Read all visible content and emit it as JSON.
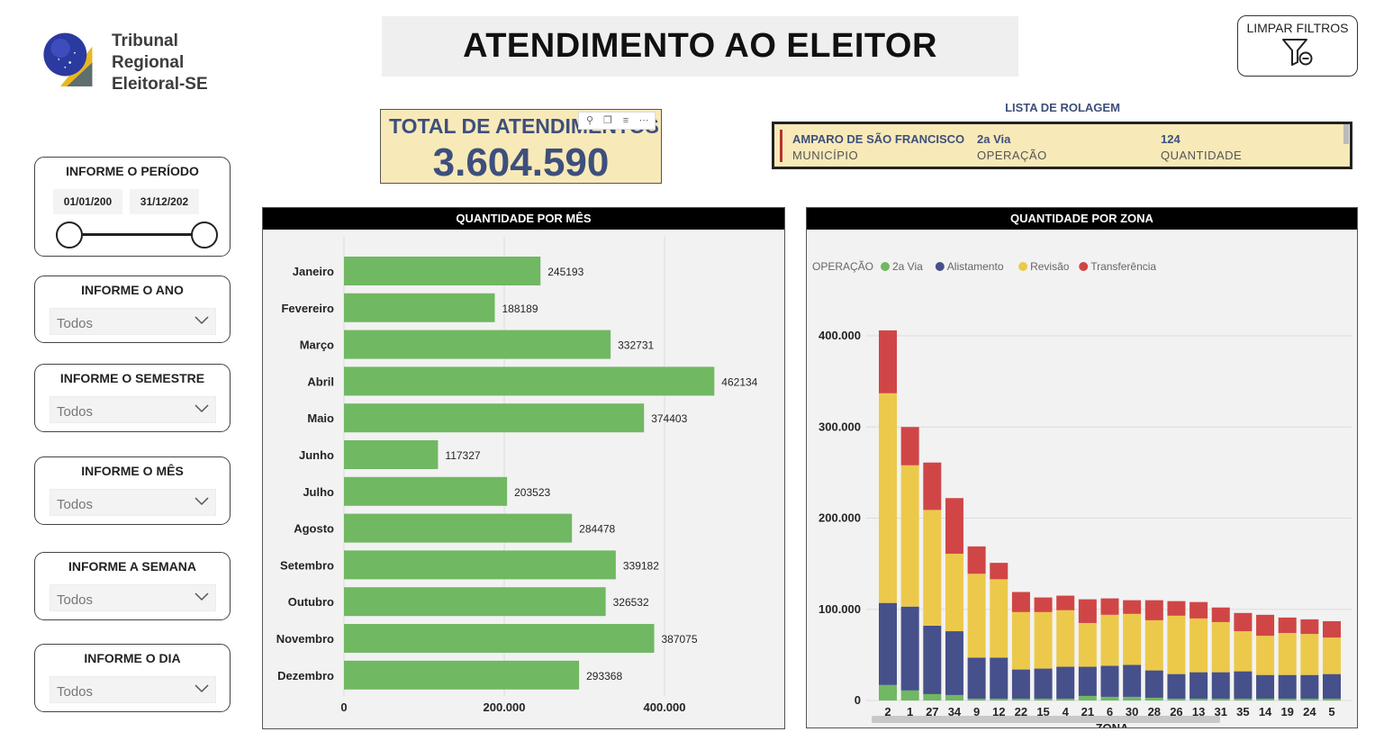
{
  "logo": {
    "line1": "Tribunal",
    "line2": "Regional",
    "line3": "Eleitoral-SE"
  },
  "title": "ATENDIMENTO AO ELEITOR",
  "clear_filters": {
    "label": "LIMPAR FILTROS",
    "icon": "filter-clear-icon"
  },
  "kpi": {
    "label": "TOTAL DE ATENDIMENTOS",
    "value": "3.604.590"
  },
  "scroll_list": {
    "title": "LISTA DE ROLAGEM",
    "municipio": {
      "value": "AMPARO DE SÃO FRANCISCO",
      "label": "MUNICÍPIO"
    },
    "operacao": {
      "value": "2a Via",
      "label": "OPERAÇÃO"
    },
    "quantidade": {
      "value": "124",
      "label": "QUANTIDADE"
    }
  },
  "slicers": {
    "period": {
      "title": "INFORME O PERÍODO",
      "start": "01/01/200",
      "end": "31/12/202"
    },
    "year": {
      "title": "INFORME O ANO",
      "value": "Todos"
    },
    "semester": {
      "title": "INFORME O SEMESTRE",
      "value": "Todos"
    },
    "month": {
      "title": "INFORME O MÊS",
      "value": "Todos"
    },
    "week": {
      "title": "INFORME A SEMANA",
      "value": "Todos"
    },
    "day": {
      "title": "INFORME O DIA",
      "value": "Todos"
    }
  },
  "colors": {
    "green": "#70b862",
    "navy": "#46508a",
    "yellow": "#ecc94b",
    "red": "#d04646",
    "kpi_text": "#3d4f7c"
  },
  "chart_data": [
    {
      "type": "bar",
      "orientation": "horizontal",
      "title": "QUANTIDADE POR MÊS",
      "categories": [
        "Janeiro",
        "Fevereiro",
        "Março",
        "Abril",
        "Maio",
        "Junho",
        "Julho",
        "Agosto",
        "Setembro",
        "Outubro",
        "Novembro",
        "Dezembro"
      ],
      "values": [
        245193,
        188189,
        332731,
        462134,
        374403,
        117327,
        203523,
        284478,
        339182,
        326532,
        387075,
        293368
      ],
      "x_ticks": [
        "0",
        "200.000",
        "400.000"
      ],
      "xlim": [
        0,
        520000
      ],
      "grid": true
    },
    {
      "type": "bar",
      "stacked": true,
      "title": "QUANTIDADE POR ZONA",
      "legend_title": "OPERAÇÃO",
      "legend_position": "top-left",
      "xlabel": "ZONA",
      "categories": [
        "2",
        "1",
        "27",
        "34",
        "9",
        "12",
        "22",
        "15",
        "4",
        "21",
        "6",
        "30",
        "28",
        "26",
        "13",
        "31",
        "35",
        "14",
        "19",
        "24",
        "5"
      ],
      "y_ticks": [
        "0",
        "100.000",
        "200.000",
        "300.000",
        "400.000"
      ],
      "ylim": [
        0,
        400000
      ],
      "grid": true,
      "series": [
        {
          "name": "2a Via",
          "color": "#70b862",
          "values": [
            17000,
            11000,
            7000,
            6000,
            2000,
            2000,
            2000,
            2000,
            2000,
            5000,
            4000,
            4000,
            3000,
            2000,
            2000,
            2000,
            2000,
            2000,
            2000,
            2000,
            2000
          ]
        },
        {
          "name": "Alistamento",
          "color": "#46508a",
          "values": [
            90000,
            92000,
            75000,
            70000,
            45000,
            45000,
            32000,
            33000,
            35000,
            32000,
            34000,
            35000,
            30000,
            27000,
            29000,
            29000,
            30000,
            26000,
            26000,
            26000,
            27000
          ]
        },
        {
          "name": "Revisão",
          "color": "#ecc94b",
          "values": [
            230000,
            155000,
            127000,
            85000,
            92000,
            86000,
            63000,
            62000,
            62000,
            48000,
            56000,
            56000,
            55000,
            64000,
            59000,
            55000,
            44000,
            43000,
            46000,
            45000,
            40000
          ]
        },
        {
          "name": "Transferência",
          "color": "#d04646",
          "values": [
            69000,
            42000,
            52000,
            61000,
            30000,
            18000,
            22000,
            16000,
            16000,
            26000,
            18000,
            15000,
            22000,
            16000,
            18000,
            16000,
            20000,
            23000,
            17000,
            16000,
            18000
          ]
        }
      ]
    }
  ]
}
